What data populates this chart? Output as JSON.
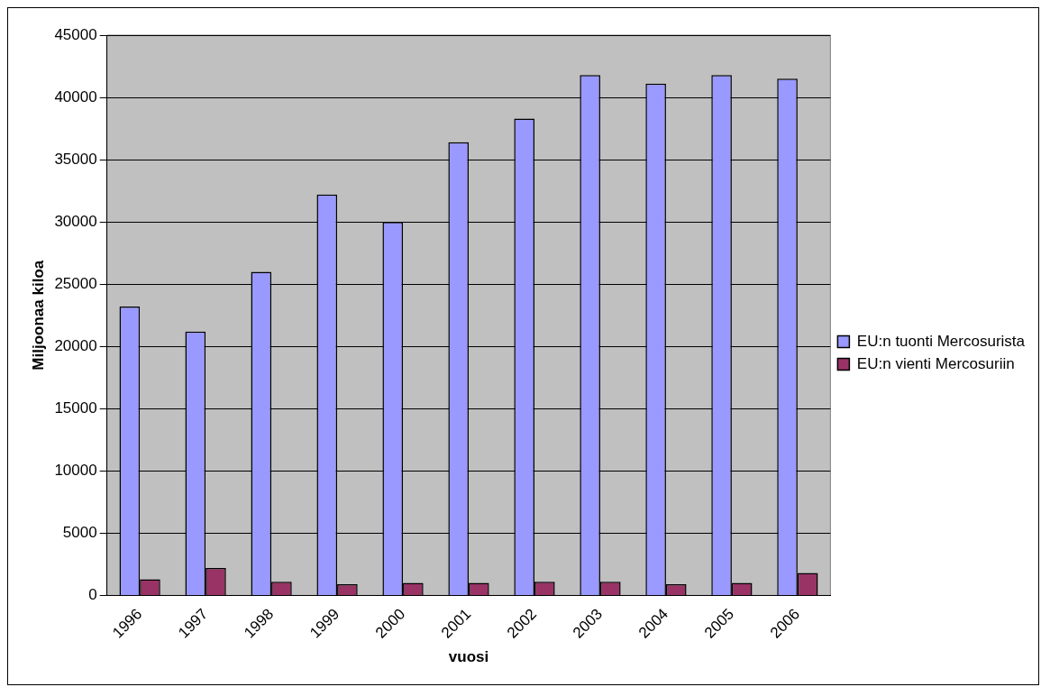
{
  "chart_data": {
    "type": "bar",
    "xlabel": "vuosi",
    "ylabel": "Miljoonaa kiloa",
    "categories": [
      "1996",
      "1997",
      "1998",
      "1999",
      "2000",
      "2001",
      "2002",
      "2003",
      "2004",
      "2005",
      "2006"
    ],
    "series": [
      {
        "name": "EU:n tuonti Mercosurista",
        "color": "#9999ff",
        "values": [
          23200,
          21200,
          26000,
          32200,
          30000,
          36400,
          38300,
          41800,
          41100,
          41800,
          41500
        ]
      },
      {
        "name": "EU:n vienti Mercosuriin",
        "color": "#993366",
        "values": [
          1300,
          2200,
          1100,
          900,
          1000,
          1000,
          1100,
          1100,
          900,
          1000,
          1800
        ]
      }
    ],
    "ylim": [
      0,
      45000
    ],
    "yticks": [
      0,
      5000,
      10000,
      15000,
      20000,
      25000,
      30000,
      35000,
      40000,
      45000
    ],
    "grid": "y",
    "legend": "right"
  }
}
